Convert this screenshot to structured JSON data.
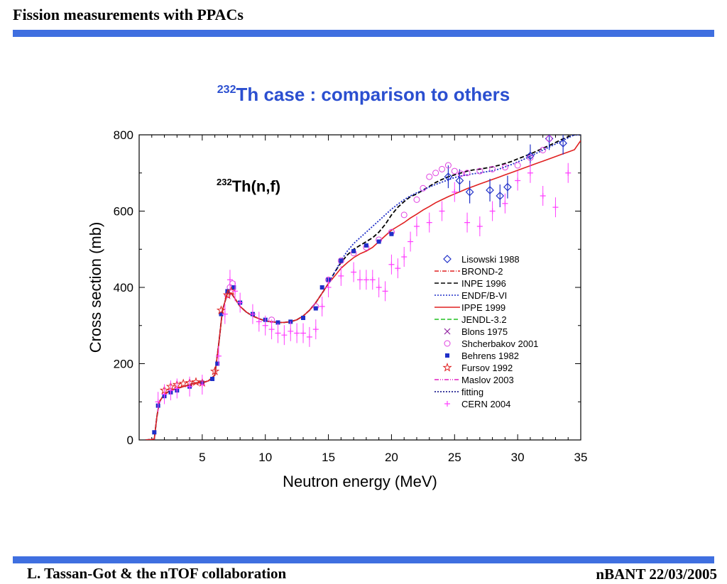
{
  "header": {
    "title": "Fission measurements with PPACs"
  },
  "slide": {
    "title_sup": "232",
    "title_main": "Th case : comparison to others"
  },
  "footer": {
    "left": "L. Tassan-Got & the nTOF collaboration",
    "right": "nBANT 22/03/2005"
  },
  "colors": {
    "accent": "#3f6fe0",
    "title": "#2b4fd0"
  },
  "chart_data": {
    "type": "line",
    "annotation_sup": "232",
    "annotation_main": "Th(n,f)",
    "xlabel": "Neutron energy (MeV)",
    "ylabel": "Cross section (mb)",
    "xlim": [
      0,
      35
    ],
    "ylim": [
      0,
      800
    ],
    "xticks": [
      5,
      10,
      15,
      20,
      25,
      30,
      35
    ],
    "yticks": [
      0,
      200,
      400,
      600,
      800
    ],
    "legend_position": "right",
    "legend": [
      {
        "label": "Lisowski 1988",
        "symbol": "diamond",
        "color": "#1f2fc8"
      },
      {
        "label": "BROND-2",
        "symbol": "dashdot",
        "color": "#e02020"
      },
      {
        "label": "INPE 1996",
        "symbol": "dash",
        "color": "#000000"
      },
      {
        "label": "ENDF/B-VI",
        "symbol": "dot",
        "color": "#1f2fc8"
      },
      {
        "label": "IPPE 1999",
        "symbol": "solid",
        "color": "#e02020"
      },
      {
        "label": "JENDL-3.2",
        "symbol": "dash",
        "color": "#20c020"
      },
      {
        "label": "Blons 1975",
        "symbol": "cross",
        "color": "#9020a0"
      },
      {
        "label": "Shcherbakov 2001",
        "symbol": "circle",
        "color": "#e040e0"
      },
      {
        "label": "Behrens 1982",
        "symbol": "square",
        "color": "#1f2fc8"
      },
      {
        "label": "Fursov 1992",
        "symbol": "star",
        "color": "#e02020"
      },
      {
        "label": "Maslov 2003",
        "symbol": "dashdotdot",
        "color": "#e020c0"
      },
      {
        "label": "fitting",
        "symbol": "dot",
        "color": "#000080"
      },
      {
        "label": "CERN 2004",
        "symbol": "plus",
        "color": "#ff40ff"
      }
    ],
    "curve_x": [
      0.5,
      1.2,
      1.4,
      1.6,
      2.0,
      2.5,
      3.0,
      3.5,
      4.0,
      4.5,
      5.0,
      5.5,
      6.0,
      6.3,
      6.6,
      7.0,
      7.3,
      7.6,
      8.0,
      8.5,
      9.0,
      9.5,
      10.0,
      10.5,
      11.0,
      11.5,
      12.0,
      12.5,
      13.0,
      13.5,
      14.0,
      14.5,
      15.0,
      15.5,
      16.0,
      16.5,
      17.0,
      17.5,
      18.0,
      18.5,
      19.0,
      19.5,
      20.0,
      20.5,
      21.0,
      21.5,
      22.0,
      22.5,
      23.0,
      23.5,
      24.0,
      24.5,
      25.0,
      25.5,
      26.0,
      26.5,
      27.0,
      27.5,
      28.0,
      28.5,
      29.0,
      29.5,
      30.0,
      30.5,
      31.0,
      31.5,
      32.0,
      32.5,
      33.0,
      33.5,
      34.0,
      34.5,
      35.0
    ],
    "series": [
      {
        "name": "INPE 1996",
        "color": "#000000",
        "style": "dash",
        "values": [
          0,
          2,
          60,
          100,
          120,
          130,
          135,
          140,
          145,
          150,
          150,
          155,
          170,
          250,
          340,
          385,
          385,
          370,
          350,
          335,
          325,
          318,
          312,
          310,
          308,
          308,
          310,
          315,
          325,
          340,
          360,
          385,
          410,
          440,
          465,
          485,
          500,
          510,
          520,
          530,
          545,
          565,
          590,
          610,
          625,
          638,
          645,
          655,
          665,
          675,
          683,
          690,
          695,
          700,
          705,
          708,
          710,
          713,
          716,
          720,
          725,
          730,
          737,
          743,
          750,
          757,
          765,
          772,
          780,
          788,
          795,
          800,
          800
        ]
      },
      {
        "name": "ENDF/B-VI",
        "color": "#1f2fc8",
        "style": "dot",
        "values": [
          0,
          2,
          60,
          100,
          120,
          130,
          135,
          140,
          145,
          150,
          150,
          155,
          170,
          250,
          340,
          385,
          385,
          370,
          350,
          335,
          325,
          318,
          312,
          310,
          308,
          308,
          310,
          315,
          325,
          340,
          360,
          385,
          410,
          440,
          470,
          495,
          515,
          530,
          545,
          560,
          575,
          590,
          605,
          618,
          630,
          640,
          648,
          655,
          663,
          670,
          676,
          682,
          688,
          692,
          695,
          698,
          700,
          703,
          706,
          710,
          716,
          722,
          729,
          736,
          744,
          752,
          760,
          768,
          776,
          784,
          792,
          800,
          800
        ]
      },
      {
        "name": "IPPE 1999",
        "color": "#e02020",
        "style": "solid",
        "values": [
          0,
          2,
          60,
          100,
          120,
          130,
          135,
          140,
          145,
          150,
          150,
          155,
          170,
          250,
          340,
          385,
          385,
          370,
          350,
          335,
          325,
          318,
          312,
          310,
          308,
          308,
          310,
          315,
          325,
          340,
          360,
          385,
          410,
          430,
          450,
          465,
          478,
          488,
          495,
          505,
          520,
          535,
          550,
          560,
          570,
          582,
          592,
          603,
          612,
          622,
          630,
          638,
          645,
          652,
          659,
          665,
          671,
          677,
          683,
          689,
          695,
          701,
          707,
          713,
          719,
          725,
          731,
          737,
          743,
          749,
          755,
          761,
          785
        ]
      }
    ],
    "points": [
      {
        "name": "Lisowski 1988",
        "x": [
          24.5,
          25.4,
          26.2,
          27.8,
          28.6,
          29.2,
          31.0,
          32.5,
          33.6
        ],
        "y": [
          690,
          680,
          650,
          655,
          640,
          663,
          745,
          790,
          778
        ]
      },
      {
        "name": "Shcherbakov 2001",
        "x": [
          7.0,
          7.2,
          7.4,
          10.5,
          14.0,
          15.0,
          16.0,
          17.0,
          18.0,
          19.0,
          20.0,
          21.0,
          22.0,
          22.5,
          23.0,
          23.5,
          24.0,
          24.5,
          25.0,
          25.5,
          26.0,
          27.0,
          28.0,
          29.0,
          30.0,
          31.0,
          32.0,
          32.5
        ],
        "y": [
          380,
          400,
          410,
          315,
          350,
          420,
          470,
          490,
          505,
          525,
          545,
          590,
          630,
          660,
          690,
          700,
          710,
          720,
          705,
          698,
          700,
          705,
          710,
          715,
          720,
          740,
          760,
          790
        ]
      },
      {
        "name": "Behrens 1982",
        "x": [
          1.2,
          1.5,
          2.0,
          2.5,
          3.0,
          4.0,
          5.0,
          5.8,
          6.2,
          6.5,
          7.0,
          7.5,
          8.0,
          9.0,
          10.0,
          11.0,
          12.0,
          13.0,
          14.0,
          14.5,
          15.0,
          16.0,
          17.0,
          18.0,
          19.0,
          20.0
        ],
        "y": [
          20,
          90,
          115,
          125,
          130,
          140,
          150,
          160,
          200,
          330,
          390,
          400,
          360,
          330,
          315,
          308,
          310,
          320,
          345,
          400,
          420,
          470,
          495,
          510,
          520,
          540
        ]
      },
      {
        "name": "Fursov 1992",
        "x": [
          2.0,
          2.5,
          3.0,
          3.5,
          4.0,
          4.5,
          5.0,
          6.0,
          6.5,
          7.0,
          7.3
        ],
        "y": [
          130,
          140,
          145,
          148,
          150,
          152,
          150,
          180,
          340,
          380,
          390
        ]
      },
      {
        "name": "CERN 2004",
        "x": [
          1.5,
          2.0,
          2.5,
          3.0,
          4.0,
          5.0,
          6.3,
          6.8,
          7.2,
          7.6,
          8.0,
          9.0,
          9.5,
          10.0,
          10.5,
          11.0,
          11.5,
          12.0,
          12.5,
          13.0,
          13.5,
          14.0,
          14.5,
          15.0,
          16.0,
          17.0,
          17.5,
          18.0,
          18.5,
          19.0,
          19.5,
          20.0,
          20.5,
          21.0,
          21.5,
          22.0,
          23.0,
          24.0,
          25.0,
          26.0,
          27.0,
          28.0,
          29.0,
          30.0,
          31.0,
          32.0,
          33.0,
          34.0
        ],
        "y": [
          100,
          120,
          130,
          135,
          140,
          145,
          220,
          330,
          420,
          390,
          360,
          330,
          310,
          300,
          290,
          280,
          275,
          285,
          280,
          280,
          270,
          290,
          350,
          400,
          430,
          440,
          420,
          420,
          420,
          400,
          390,
          460,
          450,
          480,
          520,
          560,
          570,
          600,
          650,
          570,
          560,
          600,
          620,
          680,
          700,
          640,
          610,
          700
        ]
      }
    ]
  }
}
